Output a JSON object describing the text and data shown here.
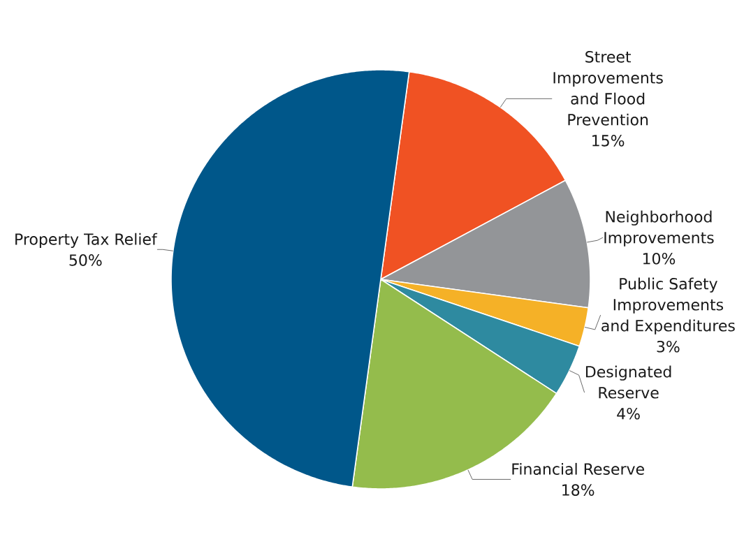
{
  "chart_data": {
    "type": "pie",
    "categories": [
      "Street Improvements and Flood Prevention",
      "Neighborhood Improvements",
      "Public Safety Improvements and Expenditures",
      "Designated Reserve",
      "Financial Reserve",
      "Property Tax Relief"
    ],
    "values": [
      15,
      10,
      3,
      4,
      18,
      50
    ],
    "colors": [
      "#f05223",
      "#939598",
      "#f5b127",
      "#2e8aa0",
      "#94bc4c",
      "#00578a"
    ],
    "value_labels": [
      "15%",
      "10%",
      "3%",
      "4%",
      "18%",
      "50%"
    ]
  }
}
